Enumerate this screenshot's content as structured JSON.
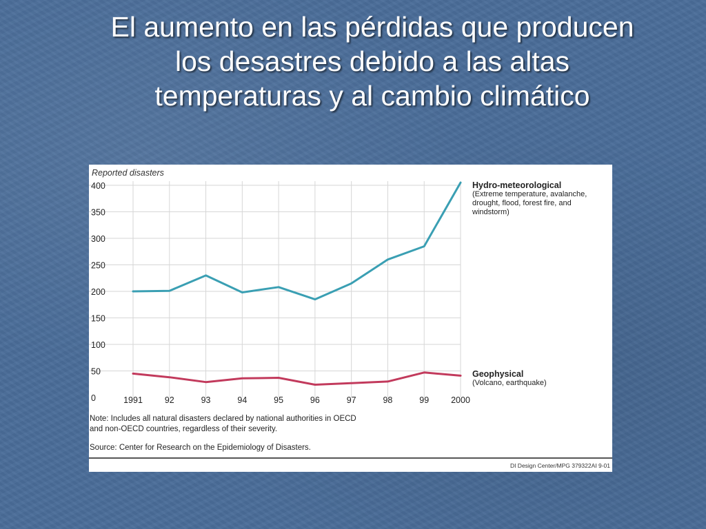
{
  "slide": {
    "title_lines": [
      "El aumento en las pérdidas que producen",
      "los desastres debido a las altas",
      "temperaturas y al cambio climático"
    ]
  },
  "chart_data": {
    "type": "line",
    "ylabel": "Reported disasters",
    "ylim": [
      0,
      400
    ],
    "yticks": [
      0,
      50,
      100,
      150,
      200,
      250,
      300,
      350,
      400
    ],
    "x": [
      "1991",
      "92",
      "93",
      "94",
      "95",
      "96",
      "97",
      "98",
      "99",
      "2000"
    ],
    "grid": true,
    "series": [
      {
        "name": "Hydro-meteorological",
        "description": "(Extreme temperature, avalanche, drought, flood, forest fire, and windstorm)",
        "color": "#3a9fb3",
        "values": [
          200,
          201,
          230,
          198,
          208,
          185,
          215,
          260,
          285,
          405
        ]
      },
      {
        "name": "Geophysical",
        "description": "(Volcano, earthquake)",
        "color": "#c23a5c",
        "values": [
          45,
          38,
          29,
          36,
          37,
          24,
          27,
          30,
          47,
          41
        ]
      }
    ],
    "note_lines": [
      "Note: Includes all natural disasters declared by national authorities in OECD",
      "and non-OECD countries, regardless of their severity."
    ],
    "source": "Source: Center for Research on the Epidemiology of Disasters.",
    "credit": "DI Design Center/MPG 379322AI 9-01"
  }
}
